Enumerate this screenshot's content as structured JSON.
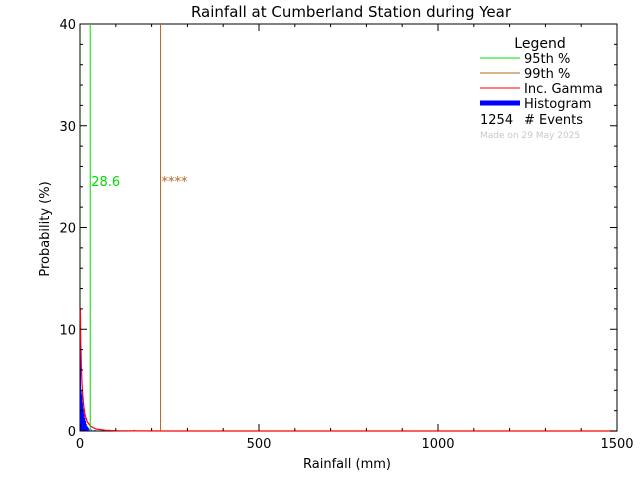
{
  "chart_data": {
    "type": "bar",
    "title": "Rainfall at Cumberland Station during Year",
    "xlabel": "Rainfall (mm)",
    "ylabel": "Probability (%)",
    "xlim": [
      0,
      1500
    ],
    "ylim": [
      0,
      40
    ],
    "x_ticks": [
      0,
      500,
      1000,
      1500
    ],
    "y_ticks": [
      0,
      10,
      20,
      30,
      40
    ],
    "grid": false,
    "legend_position": "top-right",
    "histogram": {
      "name": "Histogram",
      "color": "#0000ff",
      "bin_width_mm": 2,
      "bins": [
        {
          "x": 0,
          "p": 9.5
        },
        {
          "x": 2,
          "p": 4.0
        },
        {
          "x": 4,
          "p": 3.6
        },
        {
          "x": 6,
          "p": 2.8
        },
        {
          "x": 8,
          "p": 2.2
        },
        {
          "x": 10,
          "p": 1.7
        },
        {
          "x": 12,
          "p": 1.3
        },
        {
          "x": 14,
          "p": 1.0
        },
        {
          "x": 16,
          "p": 0.7
        },
        {
          "x": 18,
          "p": 0.5
        },
        {
          "x": 20,
          "p": 0.4
        },
        {
          "x": 22,
          "p": 0.3
        },
        {
          "x": 26,
          "p": 0.2
        },
        {
          "x": 30,
          "p": 0.15
        },
        {
          "x": 40,
          "p": 0.1
        },
        {
          "x": 60,
          "p": 0.08
        },
        {
          "x": 150,
          "p": 0.1
        },
        {
          "x": 400,
          "p": 0.05
        },
        {
          "x": 580,
          "p": 0.05
        }
      ]
    },
    "gamma_curve": {
      "name": "Inc. Gamma",
      "color": "#ff0000",
      "points": [
        [
          1,
          12.0
        ],
        [
          2,
          9.0
        ],
        [
          4,
          6.2
        ],
        [
          6,
          4.5
        ],
        [
          8,
          3.4
        ],
        [
          10,
          2.6
        ],
        [
          14,
          1.6
        ],
        [
          20,
          0.9
        ],
        [
          30,
          0.45
        ],
        [
          45,
          0.2
        ],
        [
          70,
          0.08
        ],
        [
          100,
          0.03
        ],
        [
          150,
          0.01
        ],
        [
          250,
          0.0
        ],
        [
          1500,
          0.0
        ]
      ]
    },
    "percentiles": [
      {
        "name": "95th %",
        "value": 28.6,
        "label": "28.6",
        "color": "#00dd00"
      },
      {
        "name": "99th %",
        "value": 225,
        "label": "****",
        "color": "#b5651d"
      }
    ],
    "legend": {
      "title": "Legend",
      "entries": [
        {
          "label": "95th %",
          "color": "#00dd00"
        },
        {
          "label": "99th %",
          "color": "#b5651d"
        },
        {
          "label": "Inc. Gamma",
          "color": "#ff0000"
        },
        {
          "label": "Histogram",
          "color": "#0000ff"
        }
      ],
      "events_count": "1254",
      "events_label": "# Events",
      "made_on": "Made on 29 May 2025"
    }
  }
}
